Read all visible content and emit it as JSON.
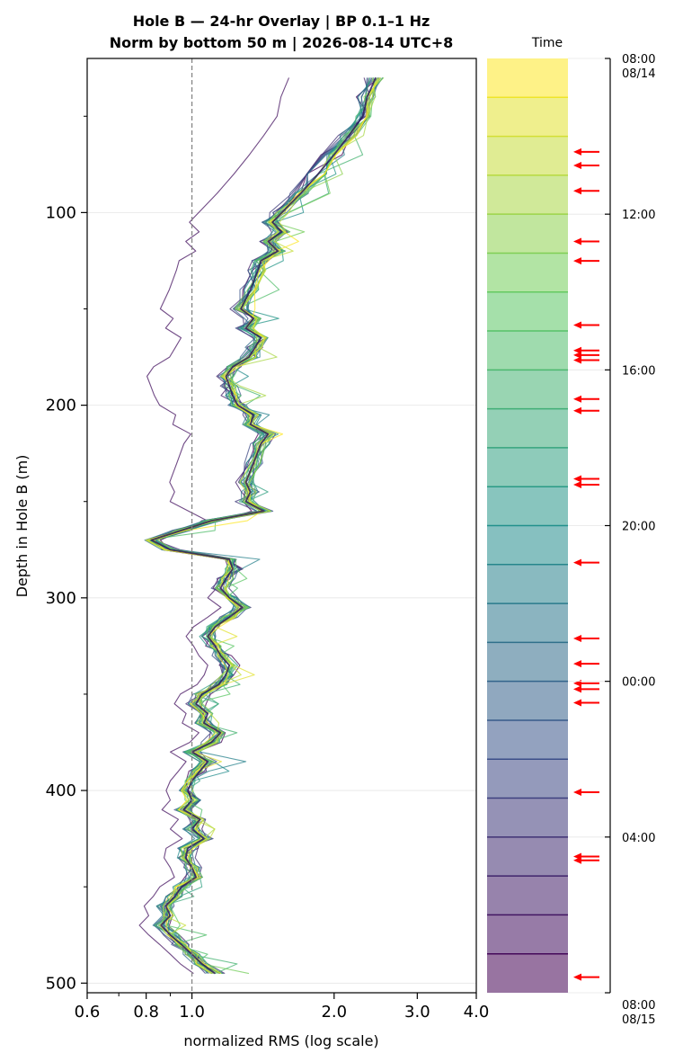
{
  "chart_data": {
    "type": "line",
    "title_line1": "Hole B — 24-hr Overlay  |  BP 0.1–1 Hz",
    "title_line2": "Norm by bottom 50 m  |  2026-08-14 UTC+8",
    "xlabel": "normalized RMS  (log scale)",
    "ylabel": "Depth in Hole B (m)",
    "x_scale": "log",
    "xlim": [
      0.6,
      4.0
    ],
    "ylim": [
      505,
      20
    ],
    "x_ticks": [
      {
        "value": 0.6,
        "label": "0.6"
      },
      {
        "value": 0.8,
        "label": "0.8"
      },
      {
        "value": 1.0,
        "label": "1.0"
      },
      {
        "value": 2.0,
        "label": "2.0"
      },
      {
        "value": 3.0,
        "label": "3.0"
      },
      {
        "value": 4.0,
        "label": "4.0"
      }
    ],
    "y_ticks": [
      {
        "value": 100,
        "label": "100"
      },
      {
        "value": 200,
        "label": "200"
      },
      {
        "value": 300,
        "label": "300"
      },
      {
        "value": 400,
        "label": "400"
      },
      {
        "value": 500,
        "label": "500"
      }
    ],
    "reference_line_x": 1.0,
    "grid": "horizontal",
    "series_count": 24,
    "median_profile": {
      "depth": [
        30,
        40,
        50,
        60,
        70,
        80,
        90,
        100,
        105,
        110,
        115,
        120,
        125,
        130,
        140,
        150,
        155,
        160,
        165,
        170,
        175,
        180,
        185,
        190,
        195,
        200,
        205,
        210,
        215,
        220,
        230,
        240,
        245,
        250,
        255,
        260,
        265,
        270,
        275,
        280,
        285,
        290,
        295,
        300,
        305,
        310,
        315,
        320,
        325,
        330,
        335,
        340,
        345,
        350,
        355,
        360,
        365,
        370,
        375,
        380,
        385,
        390,
        395,
        400,
        405,
        410,
        415,
        420,
        425,
        430,
        435,
        440,
        445,
        450,
        455,
        460,
        465,
        470,
        475,
        480,
        485,
        490,
        495
      ],
      "value": [
        2.45,
        2.35,
        2.3,
        2.15,
        2.0,
        1.85,
        1.7,
        1.55,
        1.48,
        1.55,
        1.45,
        1.52,
        1.4,
        1.38,
        1.33,
        1.27,
        1.35,
        1.3,
        1.4,
        1.36,
        1.32,
        1.22,
        1.18,
        1.2,
        1.22,
        1.25,
        1.35,
        1.33,
        1.45,
        1.4,
        1.35,
        1.3,
        1.33,
        1.3,
        1.42,
        1.1,
        0.95,
        0.82,
        0.9,
        1.2,
        1.22,
        1.18,
        1.15,
        1.2,
        1.28,
        1.2,
        1.12,
        1.08,
        1.12,
        1.15,
        1.2,
        1.18,
        1.14,
        1.05,
        1.02,
        1.08,
        1.06,
        1.15,
        1.1,
        1.0,
        1.08,
        1.04,
        1.0,
        0.98,
        1.0,
        0.96,
        1.04,
        1.0,
        1.06,
        0.98,
        0.97,
        1.0,
        1.02,
        0.95,
        0.92,
        0.88,
        0.9,
        0.86,
        0.9,
        0.95,
        1.0,
        1.05,
        1.12
      ]
    },
    "colorbar": {
      "label": "Time",
      "ticks": [
        {
          "label": "08:00\n08/14",
          "hour": 0
        },
        {
          "label": "12:00",
          "hour": 4
        },
        {
          "label": "16:00",
          "hour": 8
        },
        {
          "label": "20:00",
          "hour": 12
        },
        {
          "label": "00:00",
          "hour": 16
        },
        {
          "label": "04:00",
          "hour": 20
        },
        {
          "label": "08:00\n08/15",
          "hour": 24
        }
      ],
      "bands": 24,
      "event_markers_hours": [
        2.4,
        2.75,
        3.4,
        4.7,
        5.2,
        6.85,
        7.5,
        7.62,
        7.75,
        8.75,
        9.05,
        10.8,
        10.95,
        12.95,
        14.9,
        15.55,
        16.05,
        16.2,
        16.55,
        18.85,
        20.5,
        20.6,
        23.6
      ]
    }
  },
  "colors": {
    "reference_line": "#808080",
    "marker_arrow": "#ff0000",
    "grid": "#e6e6e6",
    "axis": "#000000"
  }
}
